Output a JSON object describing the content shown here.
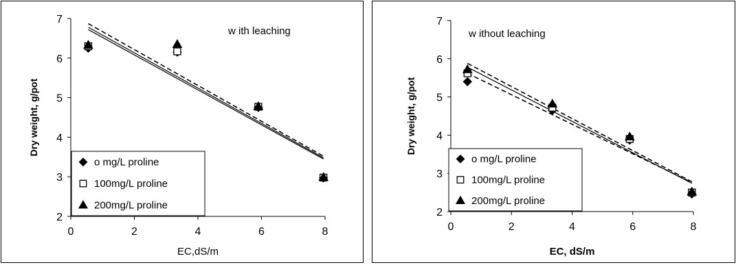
{
  "chart_data": [
    {
      "type": "scatter",
      "annotation": "w ith leaching",
      "xlabel": "EC,dS/m",
      "ylabel": "Dry weight, g/pot",
      "xlim": [
        0,
        8
      ],
      "ylim": [
        2,
        7
      ],
      "xticks": [
        "0",
        "2",
        "4",
        "6",
        "8"
      ],
      "yticks": [
        "2",
        "3",
        "4",
        "5",
        "6",
        "7"
      ],
      "legend_position": "bottom-left",
      "series": [
        {
          "name": "o mg/L proline",
          "marker": "diamond",
          "x": [
            0.55,
            3.35,
            5.9,
            7.95
          ],
          "y": [
            6.25,
            6.15,
            4.75,
            2.97
          ],
          "fit": [
            [
              0.55,
              6.72
            ],
            [
              7.95,
              3.45
            ]
          ],
          "line_style": "solid"
        },
        {
          "name": "100mg/L proline",
          "marker": "square",
          "x": [
            0.55,
            3.35,
            5.9,
            7.95
          ],
          "y": [
            6.3,
            6.17,
            4.77,
            2.98
          ],
          "fit": [
            [
              0.55,
              6.78
            ],
            [
              7.95,
              3.48
            ]
          ],
          "line_style": "solid"
        },
        {
          "name": "200mg/L proline",
          "marker": "triangle",
          "x": [
            0.55,
            3.35,
            5.9,
            7.95
          ],
          "y": [
            6.33,
            6.35,
            4.78,
            2.99
          ],
          "fit": [
            [
              0.55,
              6.87
            ],
            [
              7.95,
              3.52
            ]
          ],
          "line_style": "dashed"
        }
      ]
    },
    {
      "type": "scatter",
      "annotation": "w ithout leaching",
      "xlabel": "EC, dS/m",
      "ylabel": "Dry weight, g/pot",
      "xlim": [
        0,
        8
      ],
      "ylim": [
        2,
        7
      ],
      "xticks": [
        "0",
        "2",
        "4",
        "6",
        "8"
      ],
      "yticks": [
        "2",
        "3",
        "4",
        "5",
        "6",
        "7"
      ],
      "legend_position": "bottom-left",
      "series": [
        {
          "name": "o mg/L proline",
          "marker": "diamond",
          "x": [
            0.55,
            3.35,
            5.9,
            7.95
          ],
          "y": [
            5.4,
            4.65,
            3.87,
            2.46
          ],
          "fit": [
            [
              0.55,
              5.62
            ],
            [
              7.95,
              2.76
            ]
          ],
          "line_style": "dashed"
        },
        {
          "name": "100mg/L proline",
          "marker": "square",
          "x": [
            0.55,
            3.35,
            5.9,
            7.95
          ],
          "y": [
            5.62,
            4.72,
            3.9,
            2.5
          ],
          "fit": [
            [
              0.55,
              5.78
            ],
            [
              7.95,
              2.74
            ]
          ],
          "line_style": "solid"
        },
        {
          "name": "200mg/L proline",
          "marker": "triangle",
          "x": [
            0.55,
            3.35,
            5.9,
            7.95
          ],
          "y": [
            5.72,
            4.82,
            3.96,
            2.52
          ],
          "fit": [
            [
              0.55,
              5.88
            ],
            [
              7.95,
              2.78
            ]
          ],
          "line_style": "dashed"
        }
      ]
    }
  ]
}
